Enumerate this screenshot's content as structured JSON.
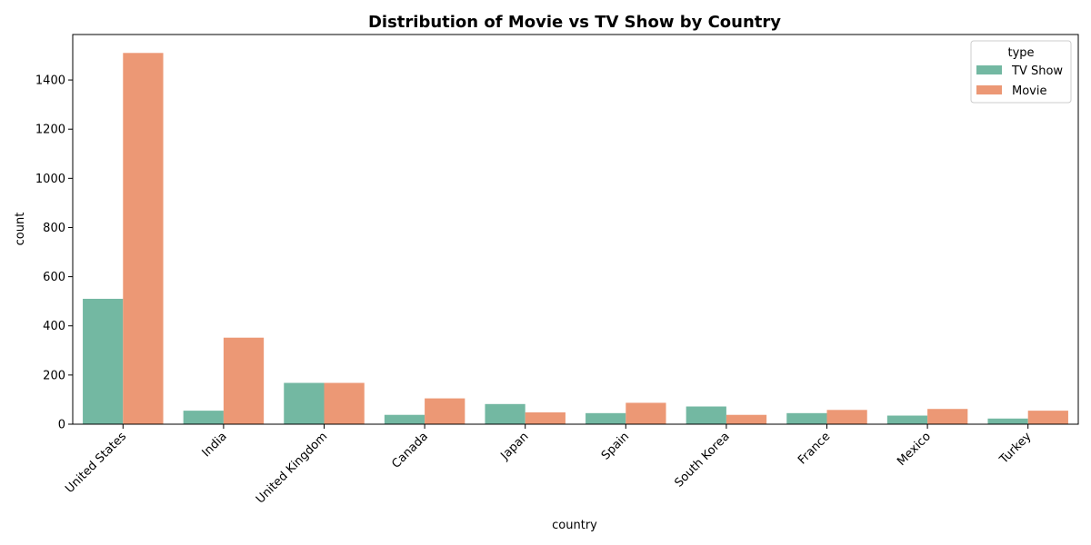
{
  "chart_data": {
    "type": "bar",
    "title": "Distribution of Movie vs TV Show by Country",
    "xlabel": "country",
    "ylabel": "count",
    "categories": [
      "United States",
      "India",
      "United Kingdom",
      "Canada",
      "Japan",
      "Spain",
      "South Korea",
      "France",
      "Mexico",
      "Turkey"
    ],
    "series": [
      {
        "name": "TV Show",
        "color": "#73b8a2",
        "values": [
          510,
          55,
          168,
          38,
          82,
          45,
          72,
          45,
          35,
          23
        ]
      },
      {
        "name": "Movie",
        "color": "#ec9875",
        "values": [
          1510,
          352,
          168,
          105,
          48,
          87,
          38,
          58,
          62,
          55
        ]
      }
    ],
    "ylim": [
      0,
      1585
    ],
    "yticks": [
      0,
      200,
      400,
      600,
      800,
      1000,
      1200,
      1400
    ],
    "legend": {
      "title": "type",
      "placement": "top-right"
    },
    "grid": false
  }
}
